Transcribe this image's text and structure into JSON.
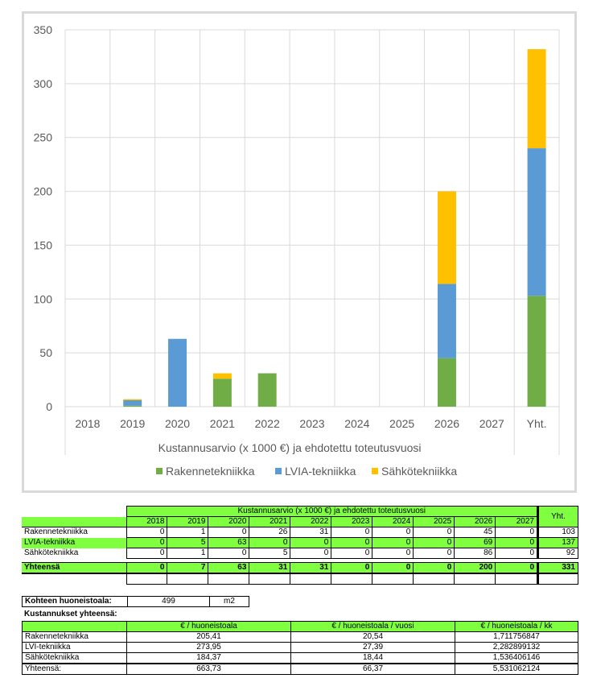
{
  "chart_data": {
    "type": "bar",
    "stacked": true,
    "categories": [
      "2018",
      "2019",
      "2020",
      "2021",
      "2022",
      "2023",
      "2024",
      "2025",
      "2026",
      "2027",
      "Yht."
    ],
    "group_label": "Kustannusarvio (x 1000 €) ja ehdotettu toteutusvuosi",
    "series": [
      {
        "name": "Rakennetekniikka",
        "color": "#70ad47",
        "values": [
          0,
          1,
          0,
          26,
          31,
          0,
          0,
          0,
          45,
          0,
          103
        ]
      },
      {
        "name": "LVIA-tekniikka",
        "color": "#5b9bd5",
        "values": [
          0,
          5,
          63,
          0,
          0,
          0,
          0,
          0,
          69,
          0,
          137
        ]
      },
      {
        "name": "Sähkötekniikka",
        "color": "#ffc000",
        "values": [
          0,
          1,
          0,
          5,
          0,
          0,
          0,
          0,
          86,
          0,
          92
        ]
      }
    ],
    "ylim": [
      0,
      350
    ],
    "yticks": [
      0,
      50,
      100,
      150,
      200,
      250,
      300,
      350
    ],
    "grid": true,
    "legend_position": "bottom"
  },
  "table": {
    "header_title": "Kustannusarvio (x 1000 €) ja ehdotettu toteutusvuosi",
    "years": [
      "2018",
      "2019",
      "2020",
      "2021",
      "2022",
      "2023",
      "2024",
      "2025",
      "2026",
      "2027"
    ],
    "total_label": "Yht.",
    "rows": [
      {
        "label": "Rakennetekniikka",
        "values": [
          "0",
          "1",
          "0",
          "26",
          "31",
          "0",
          "0",
          "0",
          "45",
          "0"
        ],
        "total": "103"
      },
      {
        "label": "LVIA-tekniikka",
        "values": [
          "0",
          "5",
          "63",
          "0",
          "0",
          "0",
          "0",
          "0",
          "69",
          "0"
        ],
        "total": "137"
      },
      {
        "label": "Sähkötekniikka",
        "values": [
          "0",
          "1",
          "0",
          "5",
          "0",
          "0",
          "0",
          "0",
          "86",
          "0"
        ],
        "total": "92"
      }
    ],
    "sum_row": {
      "label": "Yhteensä",
      "values": [
        "0",
        "7",
        "63",
        "31",
        "31",
        "0",
        "0",
        "0",
        "200",
        "0"
      ],
      "total": "331"
    }
  },
  "area": {
    "label": "Kohteen huoneistoala:",
    "value": "499",
    "unit": "m2"
  },
  "costs": {
    "title": "Kustannukset yhteensä:",
    "headers": [
      "€ / huoneistoala",
      "€ / huoneistoala / vuosi",
      "€ / huoneistoala / kk"
    ],
    "rows": [
      {
        "label": "Rakennetekniikka",
        "v1": "205,41",
        "v2": "20,54",
        "v3": "1,711756847"
      },
      {
        "label": "LVI-tekniikka",
        "v1": "273,95",
        "v2": "27,39",
        "v3": "2,282899132"
      },
      {
        "label": "Sähkötekniikka",
        "v1": "184,37",
        "v2": "18,44",
        "v3": "1,536406146"
      },
      {
        "label": "Yhteensä:",
        "v1": "663,73",
        "v2": "66,37",
        "v3": "5,531062124"
      }
    ]
  }
}
